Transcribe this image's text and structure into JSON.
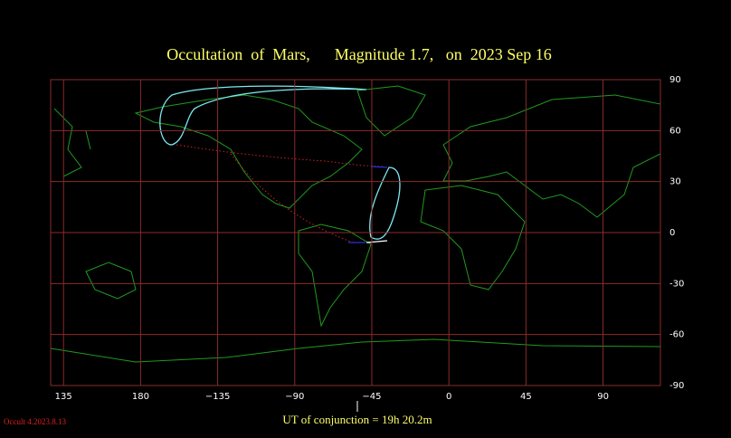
{
  "chart_data": {
    "type": "map",
    "title": "Occultation  of  Mars,      Magnitude 1.7,   on  2023 Sep 16",
    "xlim": [
      127.5,
      123.5
    ],
    "xticks": [
      135,
      180,
      {
        "value": -135,
        "label": "−135"
      },
      {
        "value": -90,
        "label": "−90"
      },
      {
        "value": -45,
        "label": "−45"
      },
      0,
      45,
      90
    ],
    "ylim": [
      -90,
      90
    ],
    "yticks": [
      90,
      60,
      30,
      0,
      -30,
      -60,
      -90
    ],
    "grid": true,
    "annotation": "UT of conjunction = 19h 20.2m",
    "footer": "Occult 4.2023.8.13"
  }
}
